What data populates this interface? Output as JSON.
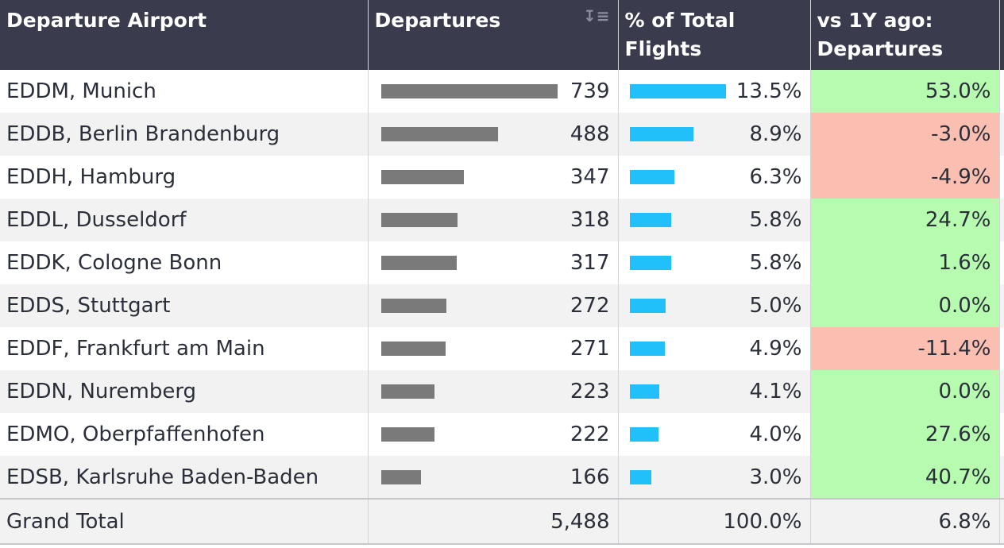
{
  "headers": {
    "airport": "Departure Airport",
    "departures": "Departures",
    "pct": "% of Total Flights",
    "yoy": "vs 1Y ago: Departures"
  },
  "colors": {
    "header_bg": "#3a3c4d",
    "bar_departures": "#7a7a7a",
    "bar_pct": "#22c0fb",
    "positive": "#b6fbb0",
    "negative": "#fbbfb2"
  },
  "icons": {
    "sort": "sort-descending-icon"
  },
  "rows": [
    {
      "airport": "EDDM, Munich",
      "departures": "739",
      "departures_value": 739,
      "pct": "13.5%",
      "pct_value": 13.5,
      "yoy": "53.0%",
      "yoy_sign": "pos"
    },
    {
      "airport": "EDDB, Berlin Brandenburg",
      "departures": "488",
      "departures_value": 488,
      "pct": "8.9%",
      "pct_value": 8.9,
      "yoy": "-3.0%",
      "yoy_sign": "neg"
    },
    {
      "airport": "EDDH, Hamburg",
      "departures": "347",
      "departures_value": 347,
      "pct": "6.3%",
      "pct_value": 6.3,
      "yoy": "-4.9%",
      "yoy_sign": "neg"
    },
    {
      "airport": "EDDL, Dusseldorf",
      "departures": "318",
      "departures_value": 318,
      "pct": "5.8%",
      "pct_value": 5.8,
      "yoy": "24.7%",
      "yoy_sign": "pos"
    },
    {
      "airport": "EDDK, Cologne Bonn",
      "departures": "317",
      "departures_value": 317,
      "pct": "5.8%",
      "pct_value": 5.8,
      "yoy": "1.6%",
      "yoy_sign": "pos"
    },
    {
      "airport": "EDDS, Stuttgart",
      "departures": "272",
      "departures_value": 272,
      "pct": "5.0%",
      "pct_value": 5.0,
      "yoy": "0.0%",
      "yoy_sign": "pos"
    },
    {
      "airport": "EDDF, Frankfurt am Main",
      "departures": "271",
      "departures_value": 271,
      "pct": "4.9%",
      "pct_value": 4.9,
      "yoy": "-11.4%",
      "yoy_sign": "neg"
    },
    {
      "airport": "EDDN, Nuremberg",
      "departures": "223",
      "departures_value": 223,
      "pct": "4.1%",
      "pct_value": 4.1,
      "yoy": "0.0%",
      "yoy_sign": "pos"
    },
    {
      "airport": "EDMO, Oberpfaffenhofen",
      "departures": "222",
      "departures_value": 222,
      "pct": "4.0%",
      "pct_value": 4.0,
      "yoy": "27.6%",
      "yoy_sign": "pos"
    },
    {
      "airport": "EDSB, Karlsruhe Baden-Baden",
      "departures": "166",
      "departures_value": 166,
      "pct": "3.0%",
      "pct_value": 3.0,
      "yoy": "40.7%",
      "yoy_sign": "pos"
    }
  ],
  "total": {
    "label": "Grand Total",
    "departures": "5,488",
    "pct": "100.0%",
    "yoy": "6.8%"
  }
}
